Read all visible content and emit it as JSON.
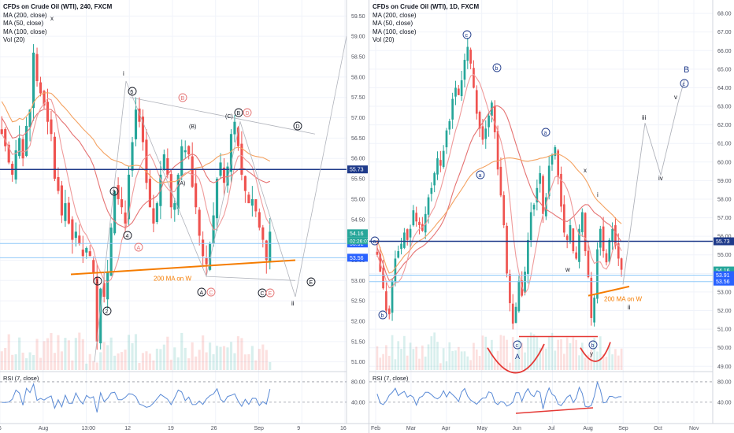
{
  "left": {
    "title": "CFDs on Crude Oil (WTI), 240, FXCM",
    "indicators": [
      "MA (200, close)",
      "MA (50, close)",
      "MA (100, close)",
      "Vol (20)"
    ],
    "rsi_label": "RSI (7, close)",
    "ma_note": "200 MA on W",
    "tags": {
      "current": "54.16",
      "timer": "02:26:07",
      "p1": "53.91",
      "p2": "53.56",
      "res": "55.73"
    }
  },
  "right": {
    "title": "CFDs on Crude Oil (WTI), 1D, FXCM",
    "indicators": [
      "MA (200, close)",
      "MA (50, close)",
      "MA (100, close)",
      "Vol (20)"
    ],
    "rsi_label": "RSI (7, close)",
    "ma_note": "200 MA on W",
    "tags": {
      "current": "54.16",
      "p1": "53.91",
      "p2": "53.56",
      "res": "55.73"
    }
  },
  "chart_data": [
    {
      "type": "candlestick",
      "title": "CFDs on Crude Oil (WTI), 240, FXCM",
      "x_ticks": [
        "26",
        "Aug",
        "13:00",
        "12",
        "19",
        "26",
        "Sep",
        "9",
        "16"
      ],
      "y_ticks": [
        59.5,
        59.0,
        58.5,
        58.0,
        57.5,
        57.0,
        56.5,
        56.0,
        55.5,
        55.0,
        54.5,
        54.0,
        53.5,
        53.0,
        52.5,
        52.0,
        51.5,
        51.0
      ],
      "ylim": [
        50.8,
        59.7
      ],
      "resistance": 55.73,
      "support_lines": [
        53.91,
        53.56
      ],
      "current_price": 54.16,
      "rsi_ticks": [
        80.0,
        40.0
      ],
      "close_path": [
        56.6,
        56.3,
        55.9,
        55.6,
        56.2,
        56.5,
        56.0,
        56.8,
        57.2,
        58.6,
        57.9,
        57.6,
        57.3,
        56.9,
        56.6,
        55.5,
        55.2,
        54.6,
        54.9,
        54.4,
        54.0,
        54.2,
        53.9,
        53.6,
        53.8,
        53.6,
        53.2,
        51.5,
        52.8,
        52.6,
        53.2,
        54.3,
        55.2,
        55.0,
        54.8,
        54.4,
        55.6,
        56.4,
        57.2,
        56.9,
        56.4,
        55.4,
        54.8,
        54.4,
        54.9,
        55.6,
        56.1,
        55.6,
        54.8,
        54.9,
        55.6,
        56.3,
        56.2,
        56.1,
        55.3,
        54.8,
        54.1,
        53.6,
        53.4,
        53.9,
        54.6,
        55.5,
        55.9,
        55.4,
        55.8,
        56.6,
        56.9,
        56.3,
        55.6,
        55.2,
        54.9,
        55.0,
        54.7,
        54.3,
        54.0,
        53.5,
        54.2
      ],
      "annotations": [
        "x",
        "i",
        "5",
        "4",
        "3",
        "2",
        "1",
        "A",
        "B",
        "C",
        "E",
        "D",
        "(A)",
        "(B)",
        "(C)",
        "ii"
      ]
    },
    {
      "type": "candlestick",
      "title": "CFDs on Crude Oil (WTI), 1D, FXCM",
      "x_ticks": [
        "Feb",
        "Mar",
        "Apr",
        "May",
        "Jun",
        "Jul",
        "Aug",
        "Sep",
        "Oct",
        "Nov"
      ],
      "y_ticks": [
        68.0,
        67.0,
        66.0,
        65.0,
        64.0,
        63.0,
        62.0,
        61.0,
        60.0,
        59.0,
        58.0,
        57.0,
        56.0,
        55.0,
        54.0,
        53.0,
        52.0,
        51.0,
        50.0,
        49.0
      ],
      "ylim": [
        48.8,
        68.3
      ],
      "resistance": 55.73,
      "support_lines": [
        53.91,
        53.56
      ],
      "current_price": 54.16,
      "rsi_ticks": [
        80.0,
        40.0
      ],
      "close_path": [
        55.0,
        54.1,
        53.2,
        52.0,
        51.8,
        53.6,
        54.8,
        55.2,
        55.6,
        56.2,
        55.8,
        56.4,
        57.4,
        56.8,
        56.6,
        56.3,
        57.2,
        58.1,
        58.6,
        59.4,
        60.2,
        59.8,
        60.6,
        61.7,
        62.2,
        63.4,
        64.0,
        63.6,
        64.4,
        65.5,
        66.2,
        65.3,
        64.0,
        62.6,
        61.8,
        61.2,
        61.8,
        62.5,
        63.2,
        61.6,
        59.6,
        58.2,
        56.6,
        54.0,
        52.4,
        51.3,
        52.2,
        53.6,
        52.8,
        54.1,
        55.8,
        57.3,
        57.7,
        58.6,
        59.4,
        57.2,
        58.1,
        59.8,
        60.4,
        60.8,
        59.2,
        57.6,
        56.2,
        55.8,
        56.6,
        55.2,
        54.8,
        56.4,
        57.3,
        55.2,
        53.8,
        51.6,
        52.7,
        55.3,
        56.4,
        55.2,
        54.6,
        55.8,
        56.4,
        55.5,
        54.8,
        54.2
      ],
      "projection": [
        "iii",
        "iv",
        "v",
        "B",
        "c"
      ],
      "annotations": [
        "c",
        "b",
        "a",
        "c",
        "b",
        "a",
        "A",
        "w",
        "x",
        "y",
        "i",
        "ii",
        "B",
        "c",
        "iii",
        "iv",
        "v"
      ]
    }
  ]
}
